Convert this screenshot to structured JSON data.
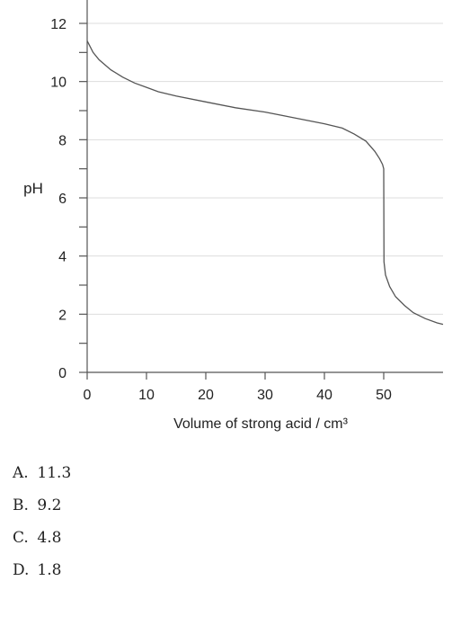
{
  "chart_data": {
    "type": "line",
    "title": "",
    "xlabel": "Volume of strong acid / cm³",
    "ylabel": "pH",
    "xlim": [
      0,
      60
    ],
    "ylim": [
      0,
      12
    ],
    "x_ticks": [
      0,
      10,
      20,
      30,
      40,
      50
    ],
    "x_tick_labels": [
      "0",
      "10",
      "20",
      "30",
      "40",
      "50"
    ],
    "y_ticks": [
      0,
      2,
      4,
      6,
      8,
      10,
      12
    ],
    "y_tick_labels": [
      "0",
      "2",
      "4",
      "6",
      "8",
      "10",
      "12"
    ],
    "y_minor_ticks": [
      1,
      3,
      5,
      7,
      9,
      11
    ],
    "grid": "horizontal",
    "colors": {
      "line": "#555555",
      "grid": "#dddddd",
      "axis": "#555555"
    },
    "series": [
      {
        "x": [
          0,
          1,
          2,
          4,
          6,
          8,
          10,
          12,
          15,
          20,
          25,
          30,
          35,
          40,
          43,
          45,
          47,
          48.5,
          49.3,
          49.8,
          50,
          50.05,
          50.3,
          51,
          52,
          53.5,
          55,
          57,
          59,
          60
        ],
        "y": [
          11.4,
          11.0,
          10.75,
          10.4,
          10.15,
          9.95,
          9.8,
          9.65,
          9.5,
          9.3,
          9.1,
          8.95,
          8.75,
          8.55,
          8.4,
          8.2,
          7.95,
          7.6,
          7.35,
          7.15,
          7.0,
          3.8,
          3.35,
          2.95,
          2.6,
          2.3,
          2.05,
          1.85,
          1.7,
          1.65
        ]
      }
    ]
  },
  "options": [
    {
      "letter": "A.",
      "value": "11.3"
    },
    {
      "letter": "B.",
      "value": "9.2"
    },
    {
      "letter": "C.",
      "value": "4.8"
    },
    {
      "letter": "D.",
      "value": "1.8"
    }
  ]
}
